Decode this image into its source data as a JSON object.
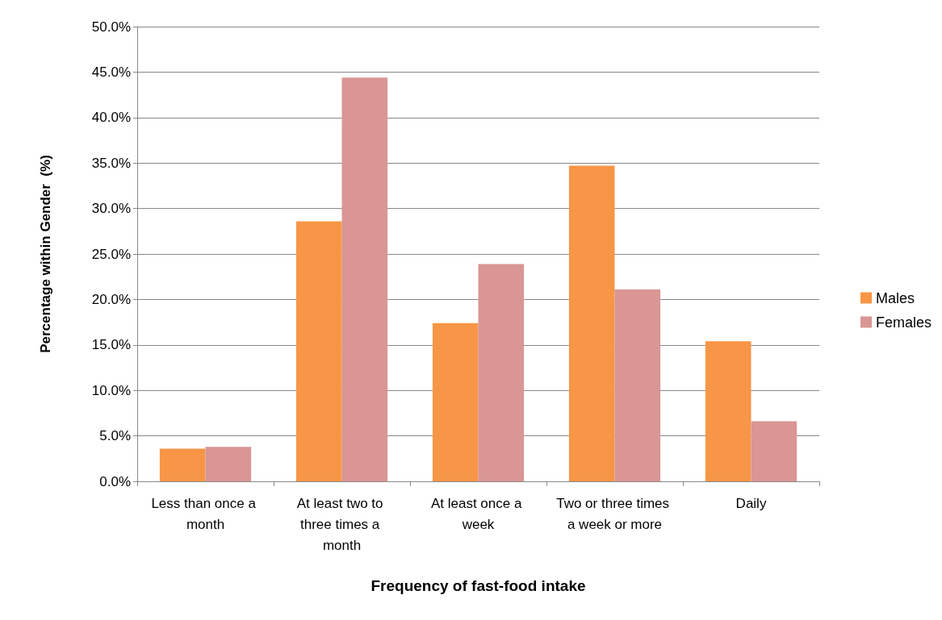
{
  "chart_data": {
    "type": "bar",
    "xlabel": "Frequency of fast-food intake",
    "ylabel": "Percentage within Gender  (%)",
    "categories": [
      "Less than once a month",
      "At least two to three times a month",
      "At least once a week",
      "Two or three times a week or more",
      "Daily"
    ],
    "series": [
      {
        "name": "Males",
        "color": "#f79646",
        "values": [
          3.6,
          28.6,
          17.4,
          34.7,
          15.4
        ]
      },
      {
        "name": "Females",
        "color": "#d99694",
        "values": [
          3.8,
          44.4,
          23.9,
          21.1,
          6.6
        ]
      }
    ],
    "ylim": [
      0,
      50
    ],
    "yticks": [
      {
        "value": 0,
        "label": "0.0%"
      },
      {
        "value": 5,
        "label": "5.0%"
      },
      {
        "value": 10,
        "label": "10.0%"
      },
      {
        "value": 15,
        "label": "15.0%"
      },
      {
        "value": 20,
        "label": "20.0%"
      },
      {
        "value": 25,
        "label": "25.0%"
      },
      {
        "value": 30,
        "label": "30.0%"
      },
      {
        "value": 35,
        "label": "35.0%"
      },
      {
        "value": 40,
        "label": "40.0%"
      },
      {
        "value": 45,
        "label": "45.0%"
      },
      {
        "value": 50,
        "label": "50.0%"
      }
    ],
    "grid": "y",
    "legend": "right"
  }
}
